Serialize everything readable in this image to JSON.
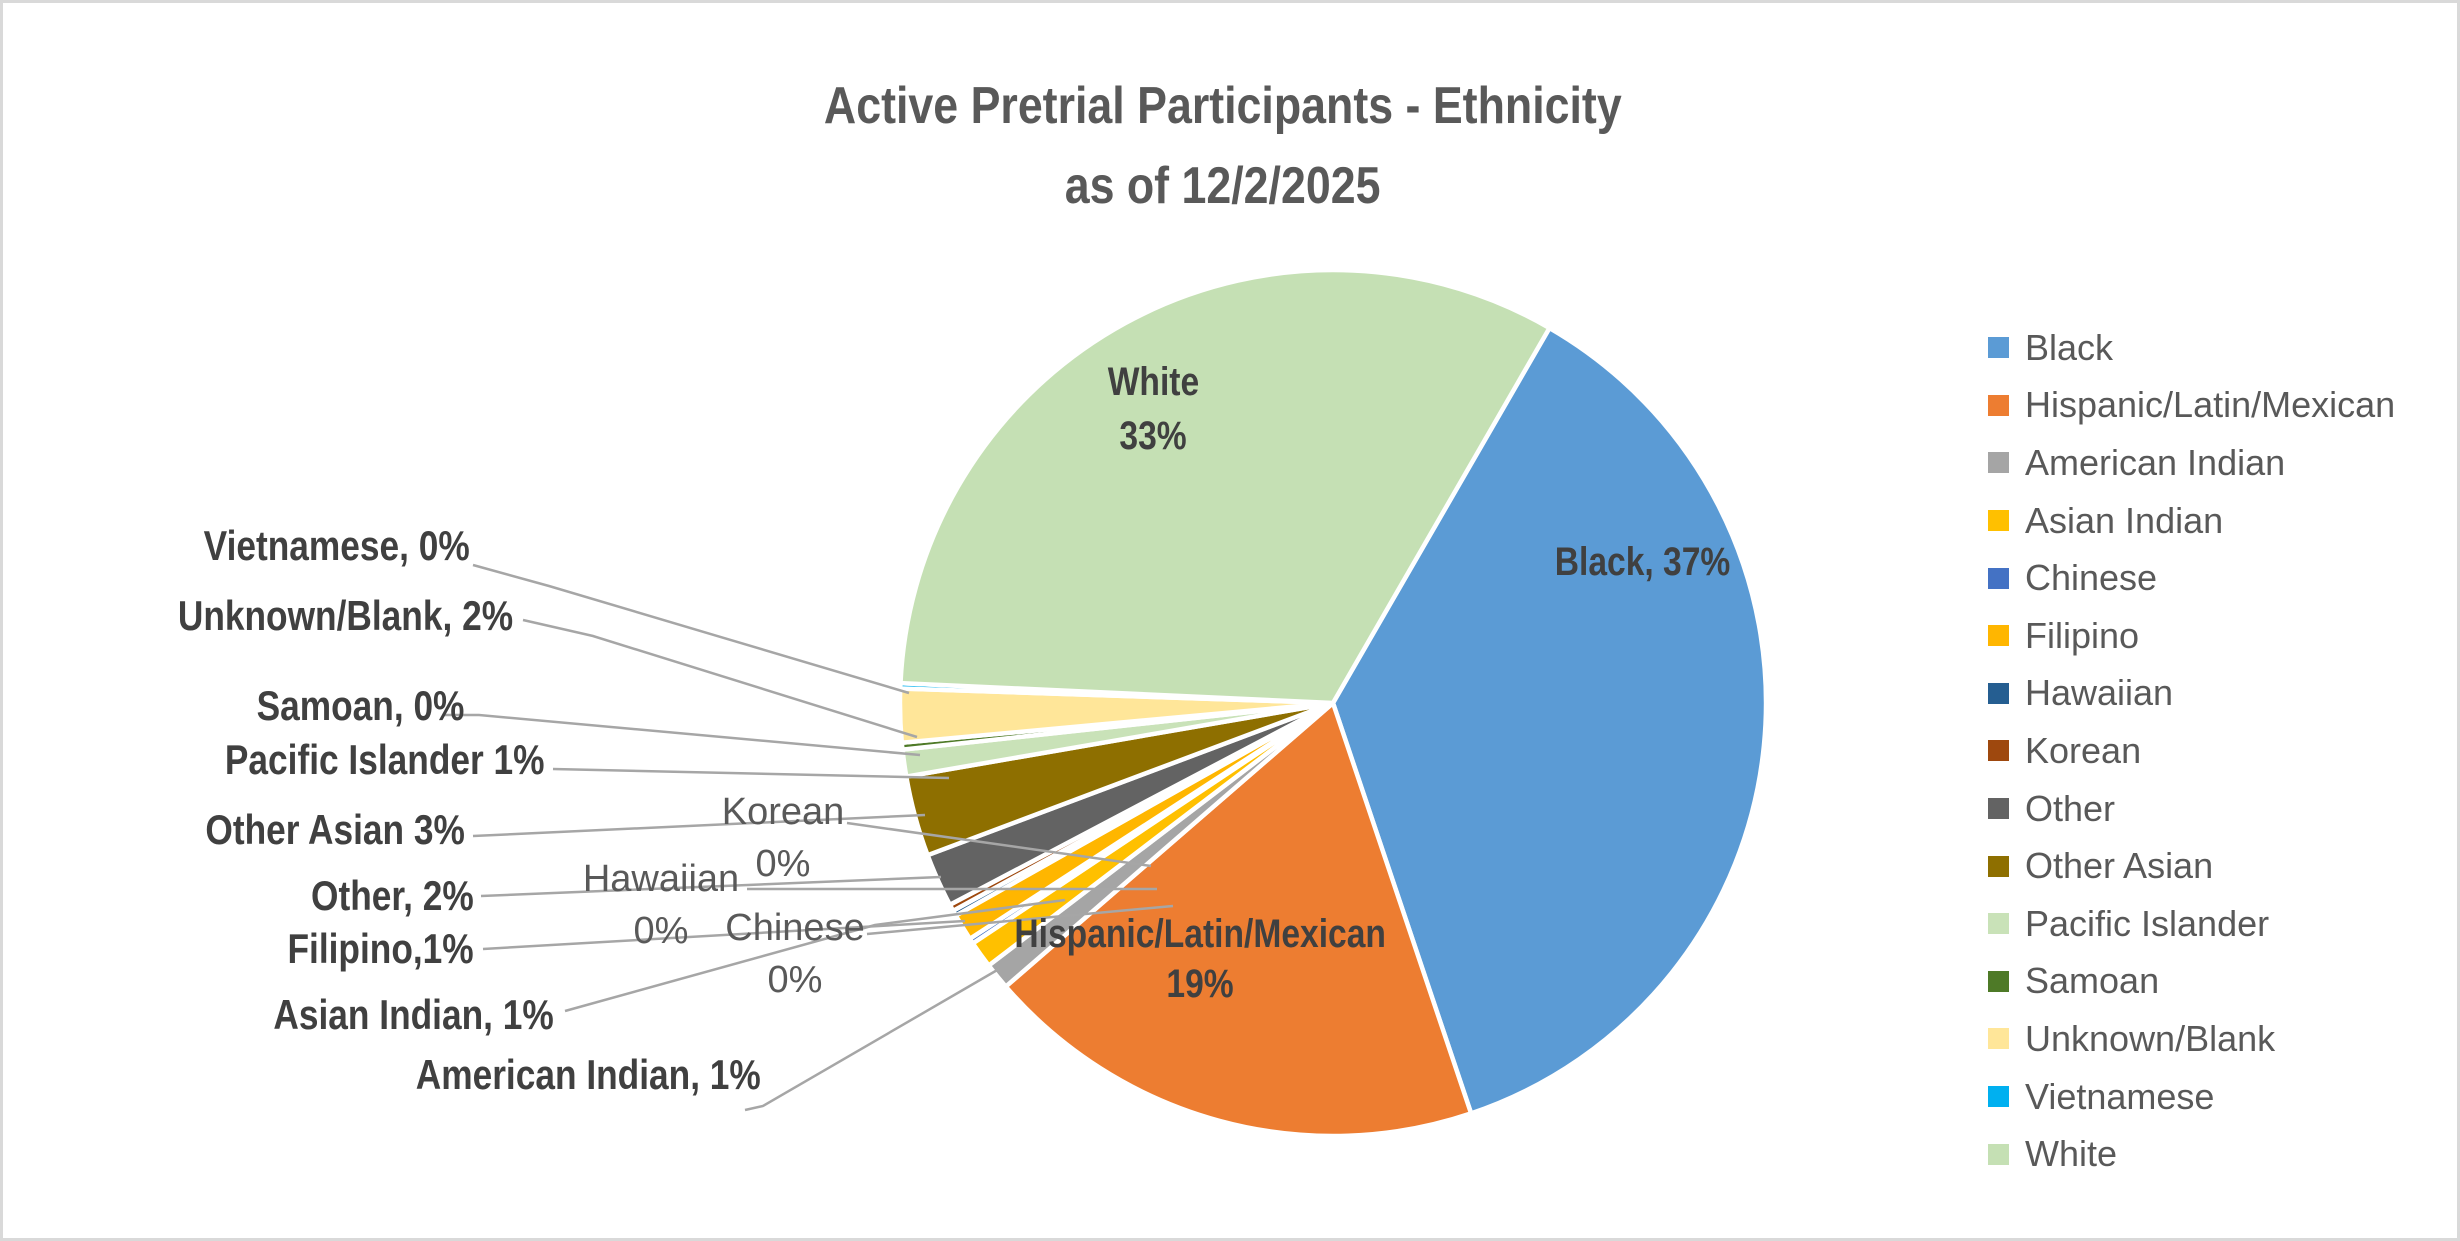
{
  "title": {
    "line1": "Active Pretrial Participants - Ethnicity",
    "line2": "as of 12/2/2025"
  },
  "chart_data": {
    "type": "pie",
    "title": "Active Pretrial Participants - Ethnicity as of 12/2/2025",
    "start_angle_deg": 30,
    "direction": "clockwise",
    "legend_position": "right",
    "series": [
      {
        "name": "Black",
        "pct": 37,
        "draw_pct": 36.5,
        "color": "#5B9BD5"
      },
      {
        "name": "Hispanic/Latin/Mexican",
        "pct": 19,
        "draw_pct": 18.8,
        "color": "#ED7D31"
      },
      {
        "name": "American Indian",
        "pct": 1,
        "draw_pct": 1.0,
        "color": "#A5A5A5"
      },
      {
        "name": "Asian Indian",
        "pct": 1,
        "draw_pct": 1.0,
        "color": "#FFC000"
      },
      {
        "name": "Chinese",
        "pct": 0,
        "draw_pct": 0.2,
        "color": "#4472C4"
      },
      {
        "name": "Filipino",
        "pct": 1,
        "draw_pct": 1.0,
        "color": "#FFB600"
      },
      {
        "name": "Hawaiian",
        "pct": 0,
        "draw_pct": 0.2,
        "color": "#255E91"
      },
      {
        "name": "Korean",
        "pct": 0,
        "draw_pct": 0.25,
        "color": "#9E480E"
      },
      {
        "name": "Other",
        "pct": 2,
        "draw_pct": 2.0,
        "color": "#636363"
      },
      {
        "name": "Other Asian",
        "pct": 3,
        "draw_pct": 3.0,
        "color": "#8E6F00"
      },
      {
        "name": "Pacific Islander",
        "pct": 1,
        "draw_pct": 1.0,
        "color": "#C9E2B8"
      },
      {
        "name": "Samoan",
        "pct": 0,
        "draw_pct": 0.25,
        "color": "#4E7A27"
      },
      {
        "name": "Unknown/Blank",
        "pct": 2,
        "draw_pct": 2.0,
        "color": "#FFE699"
      },
      {
        "name": "Vietnamese",
        "pct": 0,
        "draw_pct": 0.2,
        "color": "#00B0F0"
      },
      {
        "name": "White",
        "pct": 33,
        "draw_pct": 32.6,
        "color": "#C5E0B4"
      }
    ],
    "inside_labels": {
      "white": {
        "line1": "White",
        "line2": "33%"
      },
      "black": {
        "text": "Black, 37%"
      },
      "hispanic": {
        "line1": "Hispanic/Latin/Mexican",
        "line2": "19%"
      }
    },
    "callouts": {
      "vietnamese": "Vietnamese, 0%",
      "unknown": "Unknown/Blank, 2%",
      "samoan": "Samoan, 0%",
      "pacific": "Pacific Islander 1%",
      "other_asian": "Other Asian 3%",
      "other": "Other, 2%",
      "filipino": "Filipino,1%",
      "asian_indian": "Asian Indian, 1%",
      "american_indian": "American Indian, 1%",
      "korean": {
        "line1": "Korean",
        "line2": "0%"
      },
      "hawaiian": {
        "line1": "Hawaiian",
        "line2": "0%"
      },
      "chinese": {
        "line1": "Chinese",
        "line2": "0%"
      }
    }
  },
  "colors": {
    "text_dark": "#404040",
    "text_gray": "#595959",
    "leader_line": "#A6A6A6",
    "canvas_border": "#D9D9D9",
    "background": "#FFFFFF"
  }
}
